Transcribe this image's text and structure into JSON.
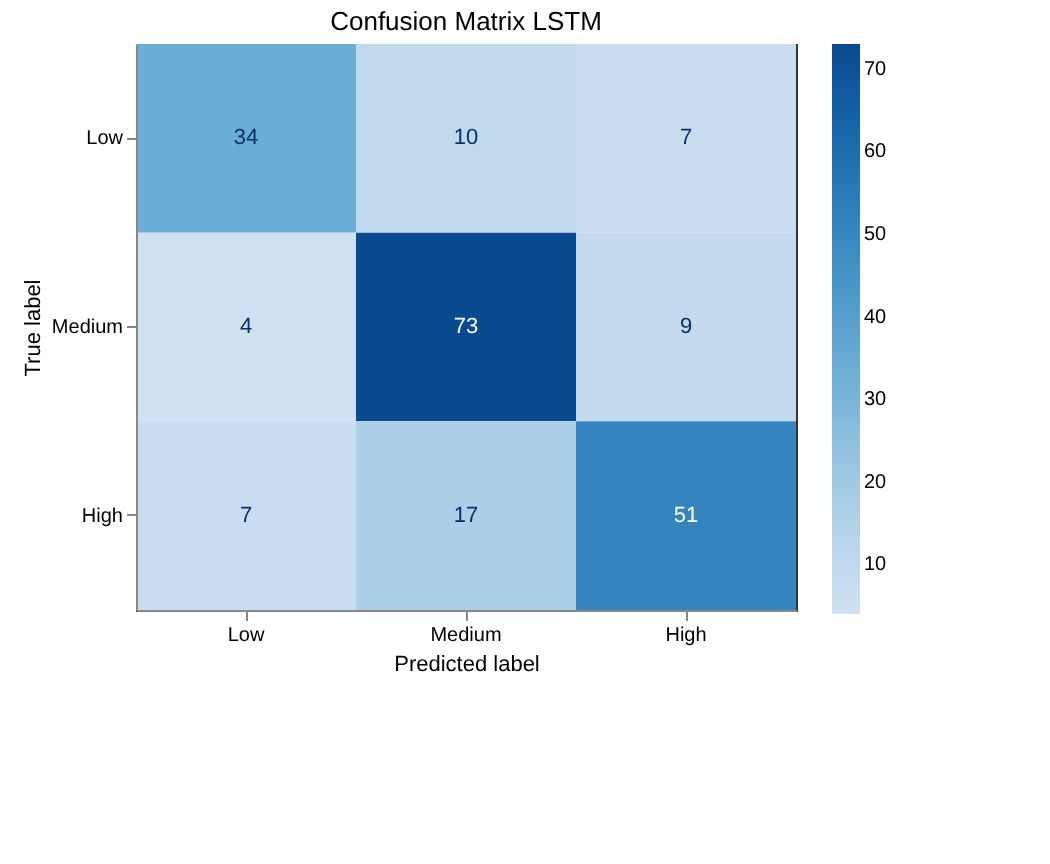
{
  "chart_data": {
    "type": "heatmap",
    "title": "Confusion Matrix LSTM",
    "xlabel": "Predicted label",
    "ylabel": "True label",
    "categories": [
      "Low",
      "Medium",
      "High"
    ],
    "y_categories": [
      "Low",
      "Medium",
      "High"
    ],
    "cells": [
      [
        34,
        10,
        7
      ],
      [
        4,
        73,
        9
      ],
      [
        7,
        17,
        51
      ]
    ],
    "clim": [
      4,
      73
    ],
    "cticks": [
      10,
      20,
      30,
      40,
      50,
      60,
      70
    ],
    "data_labels": true
  }
}
